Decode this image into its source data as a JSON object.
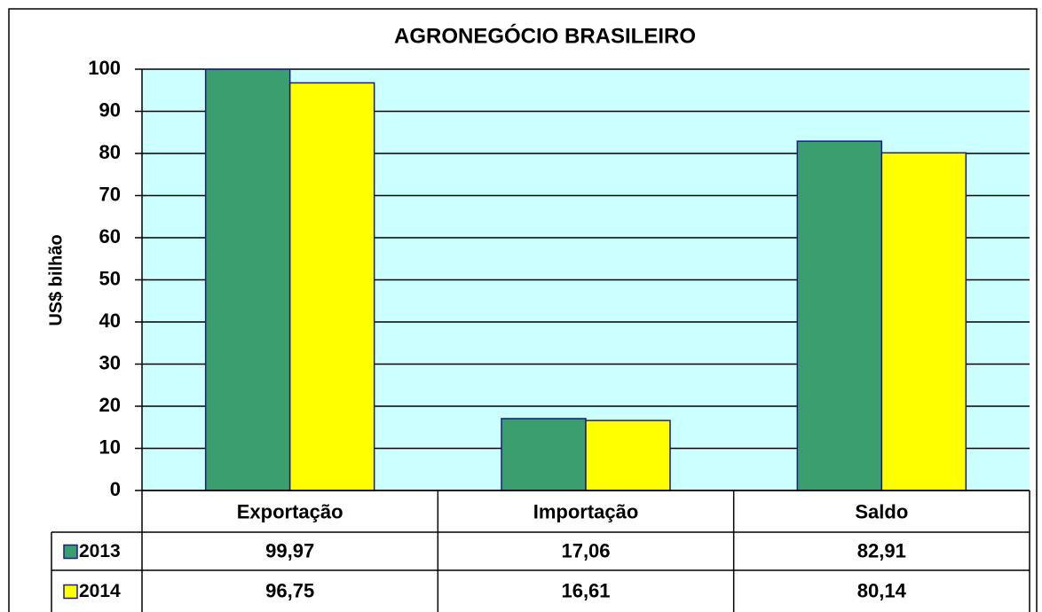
{
  "chart_data": {
    "type": "bar",
    "title": "AGRONEGÓCIO BRASILEIRO",
    "y_label": "US$ bilhão",
    "categories": [
      "Exportação",
      "Importação",
      "Saldo"
    ],
    "series": [
      {
        "name": "2013",
        "color": "#3a9e6e",
        "values": [
          99.97,
          17.06,
          82.91
        ],
        "value_labels": [
          "99,97",
          "17,06",
          "82,91"
        ]
      },
      {
        "name": "2014",
        "color": "#ffff00",
        "values": [
          96.75,
          16.61,
          80.14
        ],
        "value_labels": [
          "96,75",
          "16,61",
          "80,14"
        ]
      }
    ],
    "ylim": [
      0,
      100
    ],
    "yticks": [
      0,
      10,
      20,
      30,
      40,
      50,
      60,
      70,
      80,
      90,
      100
    ],
    "grid": true,
    "plot_background": "#ccffff"
  }
}
